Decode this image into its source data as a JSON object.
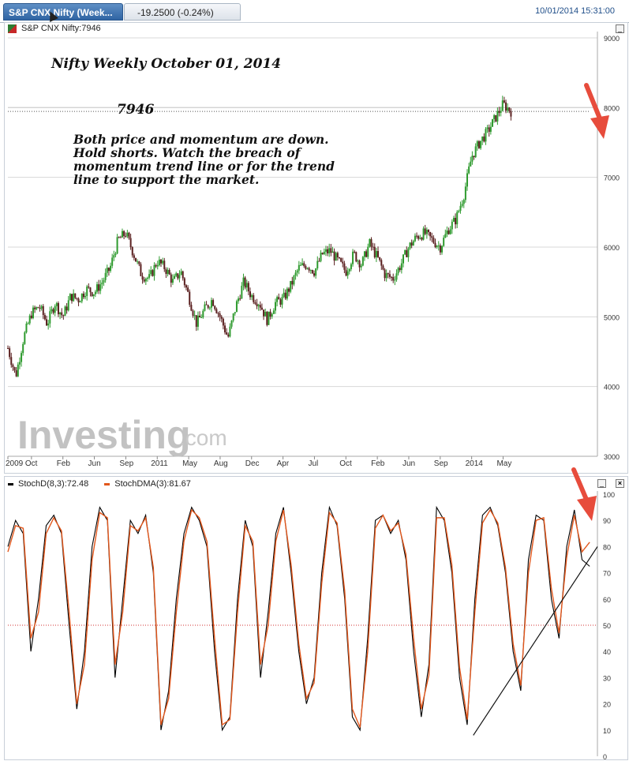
{
  "header": {
    "tab_label": "S&P CNX Nifty (Week...",
    "change": "-19.2500 (-0.24%)",
    "timestamp": "10/01/2014 15:31:00"
  },
  "colors": {
    "up": "#2e9a2e",
    "down": "#5a1f1f",
    "stoch_d": "#000000",
    "stoch_dma": "#e2571c",
    "arrow": "#e74c3c",
    "grid": "#d8d8d8",
    "midline": "#d32f2f"
  },
  "watermark": {
    "main": "Investing",
    "suffix": ".com"
  },
  "chart_data": [
    {
      "type": "candlestick",
      "legend": "S&P CNX Nifty:7946",
      "title": "Nifty Weekly October 01, 2014",
      "level_label": "7946",
      "annotation_lines": [
        "Both price and momentum are down.",
        "Hold shorts. Watch the breach of",
        "momentum trend line or for the trend",
        "line to support the market."
      ],
      "ylim": [
        3000,
        9000
      ],
      "y_ticks": [
        3000,
        4000,
        5000,
        6000,
        7000,
        8000,
        9000
      ],
      "y_tick_labels": [
        "3000",
        "4000",
        "5000",
        "6000",
        "7000",
        "8000",
        "9000"
      ],
      "x_range": [
        0,
        75
      ],
      "x_ticks": [
        0,
        3,
        7,
        11,
        15,
        19,
        23,
        27,
        31,
        35,
        39,
        43,
        47,
        51,
        55,
        59,
        63,
        67
      ],
      "x_tick_labels": [
        "2009",
        "Oct",
        "Feb",
        "Jun",
        "Sep",
        "2011",
        "May",
        "Aug",
        "Dec",
        "Apr",
        "Jul",
        "Oct",
        "Feb",
        "Jun",
        "Sep",
        "2014",
        "May",
        ""
      ],
      "key_level": 7946,
      "close_path": [
        [
          0,
          4550
        ],
        [
          1,
          4150
        ],
        [
          2,
          4700
        ],
        [
          3,
          5050
        ],
        [
          4,
          5150
        ],
        [
          5,
          4900
        ],
        [
          6,
          5200
        ],
        [
          7,
          5000
        ],
        [
          8,
          5300
        ],
        [
          9,
          5250
        ],
        [
          10,
          5400
        ],
        [
          11,
          5350
        ],
        [
          12,
          5500
        ],
        [
          13,
          5700
        ],
        [
          14,
          6100
        ],
        [
          15,
          6200
        ],
        [
          16,
          5900
        ],
        [
          17,
          5600
        ],
        [
          18,
          5550
        ],
        [
          19,
          5800
        ],
        [
          20,
          5700
        ],
        [
          21,
          5500
        ],
        [
          22,
          5650
        ],
        [
          23,
          5300
        ],
        [
          24,
          4900
        ],
        [
          25,
          5100
        ],
        [
          26,
          5250
        ],
        [
          27,
          5000
        ],
        [
          28,
          4700
        ],
        [
          29,
          5150
        ],
        [
          30,
          5500
        ],
        [
          31,
          5300
        ],
        [
          32,
          5200
        ],
        [
          33,
          4950
        ],
        [
          34,
          5200
        ],
        [
          35,
          5250
        ],
        [
          36,
          5450
        ],
        [
          37,
          5700
        ],
        [
          38,
          5750
        ],
        [
          39,
          5650
        ],
        [
          40,
          5900
        ],
        [
          41,
          5950
        ],
        [
          42,
          5800
        ],
        [
          43,
          5650
        ],
        [
          44,
          5900
        ],
        [
          45,
          5750
        ],
        [
          46,
          6050
        ],
        [
          47,
          5850
        ],
        [
          48,
          5600
        ],
        [
          49,
          5550
        ],
        [
          50,
          5750
        ],
        [
          51,
          6000
        ],
        [
          52,
          6150
        ],
        [
          53,
          6200
        ],
        [
          54,
          6100
        ],
        [
          55,
          6000
        ],
        [
          56,
          6250
        ],
        [
          57,
          6400
        ],
        [
          58,
          6750
        ],
        [
          59,
          7300
        ],
        [
          60,
          7500
        ],
        [
          61,
          7650
        ],
        [
          62,
          7850
        ],
        [
          63,
          8050
        ],
        [
          64,
          7950
        ]
      ],
      "x_max_data": 64
    },
    {
      "type": "line",
      "legend_series": [
        "StochD(8,3):72.48",
        "StochDMA(3):81.67"
      ],
      "ylim": [
        0,
        100
      ],
      "y_ticks": [
        0,
        10,
        20,
        30,
        40,
        50,
        60,
        70,
        80,
        90,
        100
      ],
      "y_tick_labels": [
        "0",
        "10",
        "20",
        "30",
        "40",
        "50",
        "60",
        "70",
        "80",
        "90",
        "100"
      ],
      "midline": 50,
      "series": [
        {
          "name": "StochD(8,3):72.48",
          "values": [
            80,
            90,
            85,
            40,
            60,
            88,
            92,
            85,
            50,
            18,
            40,
            80,
            95,
            90,
            30,
            60,
            90,
            85,
            92,
            70,
            10,
            25,
            60,
            85,
            95,
            90,
            80,
            40,
            10,
            15,
            60,
            90,
            80,
            30,
            55,
            85,
            95,
            70,
            40,
            20,
            30,
            70,
            95,
            88,
            60,
            15,
            10,
            45,
            90,
            92,
            85,
            90,
            75,
            40,
            15,
            35,
            95,
            90,
            70,
            30,
            12,
            60,
            92,
            95,
            88,
            70,
            40,
            25,
            75,
            92,
            90,
            60,
            45,
            80,
            94,
            75,
            72.48
          ]
        },
        {
          "name": "StochDMA(3):81.67",
          "values": [
            78,
            88,
            87,
            45,
            55,
            85,
            91,
            86,
            55,
            20,
            35,
            75,
            93,
            91,
            35,
            55,
            88,
            86,
            91,
            72,
            12,
            22,
            55,
            82,
            94,
            91,
            82,
            45,
            12,
            14,
            55,
            88,
            82,
            35,
            50,
            82,
            94,
            73,
            43,
            22,
            28,
            66,
            93,
            89,
            63,
            18,
            11,
            40,
            87,
            92,
            86,
            89,
            77,
            45,
            18,
            31,
            91,
            91,
            73,
            34,
            14,
            55,
            89,
            94,
            89,
            72,
            43,
            27,
            70,
            90,
            91,
            64,
            47,
            76,
            92,
            78,
            81.67
          ]
        }
      ],
      "trendline": [
        [
          60,
          8
        ],
        [
          76,
          80
        ]
      ],
      "x_range": [
        0,
        76
      ]
    }
  ]
}
